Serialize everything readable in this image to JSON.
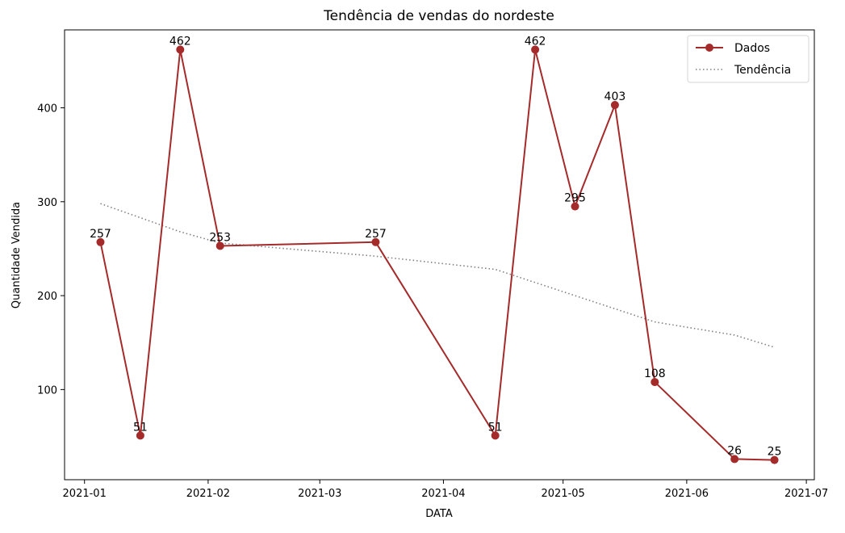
{
  "chart_data": {
    "type": "line",
    "title": "Tendência de vendas do nordeste",
    "xlabel": "DATA",
    "ylabel": "Quantidade Vendida",
    "x_tick_labels": [
      "2021-01",
      "2021-02",
      "2021-03",
      "2021-04",
      "2021-05",
      "2021-06",
      "2021-07"
    ],
    "x_ticks": [
      "2021-01-01",
      "2021-02-01",
      "2021-03-01",
      "2021-04-01",
      "2021-05-01",
      "2021-06-01",
      "2021-07-01"
    ],
    "y_ticks": [
      100,
      200,
      300,
      400
    ],
    "xlim": [
      "2020-12-27",
      "2021-07-03"
    ],
    "ylim": [
      4,
      483
    ],
    "grid": false,
    "legend_position": "top-right",
    "series": [
      {
        "name": "Dados",
        "style": "solid line with circle markers",
        "color": "#A52A2A",
        "x": [
          "2021-01-05",
          "2021-01-15",
          "2021-01-25",
          "2021-02-04",
          "2021-03-15",
          "2021-04-14",
          "2021-04-24",
          "2021-05-04",
          "2021-05-14",
          "2021-05-24",
          "2021-06-13",
          "2021-06-23"
        ],
        "values": [
          257,
          51,
          462,
          253,
          257,
          51,
          462,
          295,
          403,
          108,
          26,
          25
        ],
        "data_labels": [
          "257",
          "51",
          "462",
          "253",
          "257",
          "51",
          "462",
          "295",
          "403",
          "108",
          "26",
          "25"
        ]
      },
      {
        "name": "Tendência",
        "style": "dotted line",
        "color": "#808080",
        "x": [
          "2021-01-05",
          "2021-01-15",
          "2021-01-25",
          "2021-02-04",
          "2021-03-15",
          "2021-04-14",
          "2021-04-24",
          "2021-05-04",
          "2021-05-14",
          "2021-05-24",
          "2021-06-13",
          "2021-06-23"
        ],
        "values": [
          298,
          283,
          268,
          256,
          242,
          228,
          214,
          200,
          186,
          172,
          158,
          145
        ]
      }
    ]
  }
}
